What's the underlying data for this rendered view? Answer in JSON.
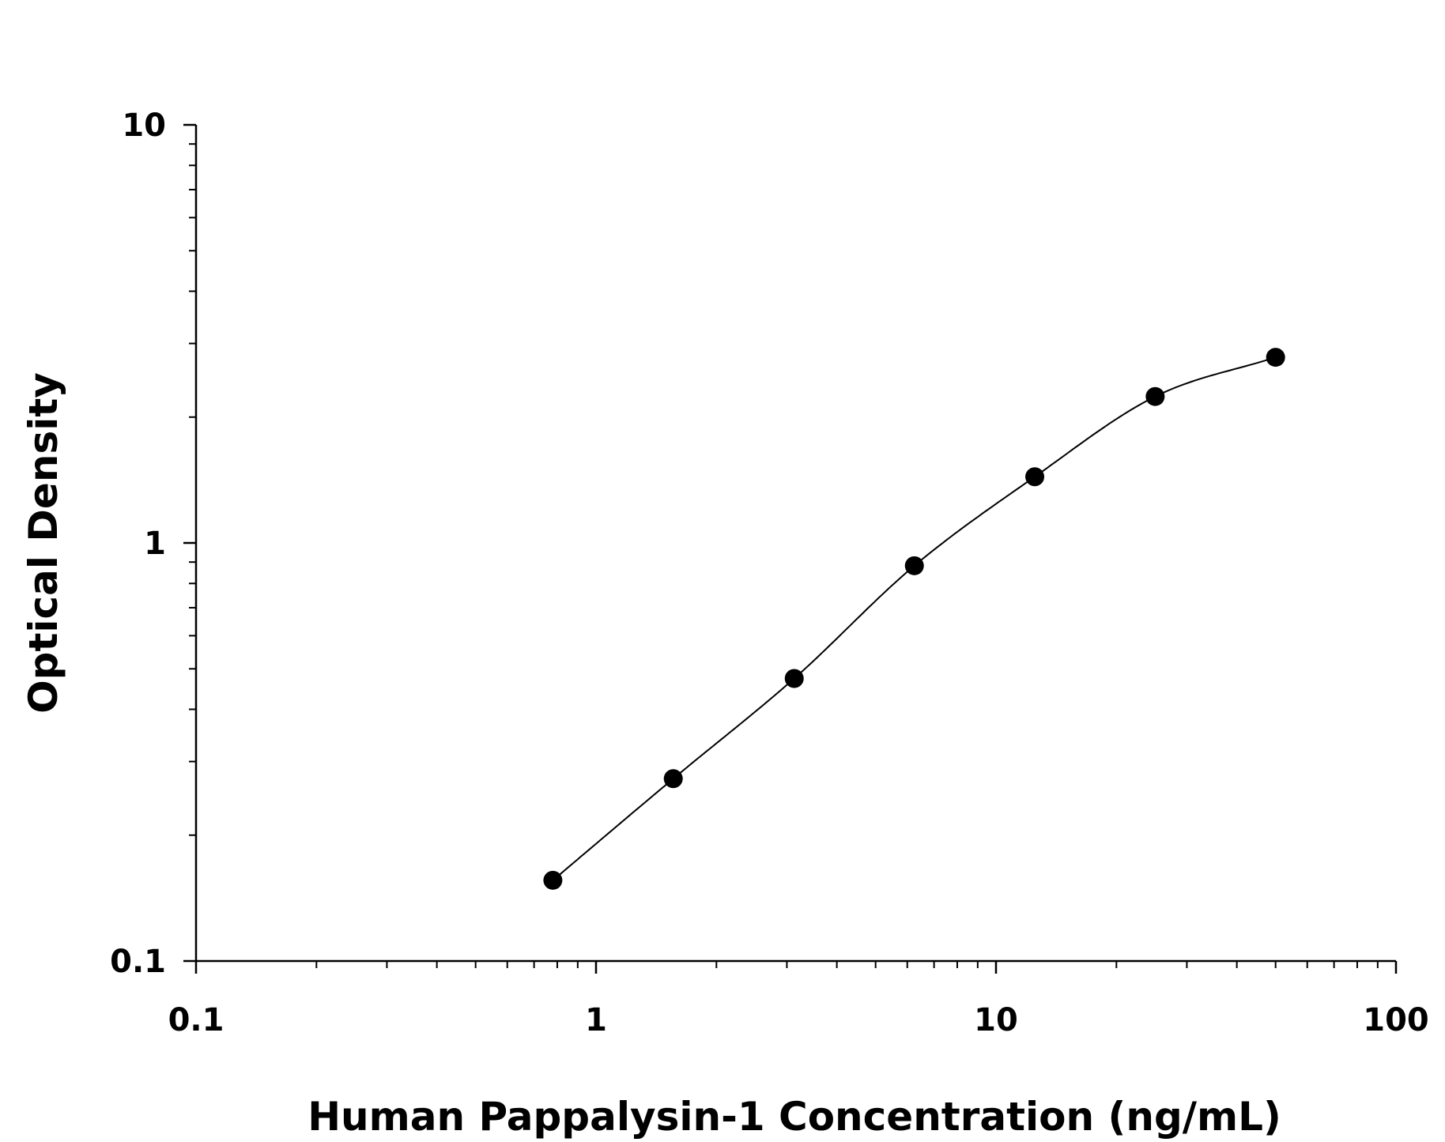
{
  "chart_data": {
    "type": "scatter",
    "xlabel": "Human Pappalysin-1 Concentration (ng/mL)",
    "ylabel": "Optical Density",
    "xscale": "log",
    "yscale": "log",
    "xlim": [
      0.1,
      100
    ],
    "ylim": [
      0.1,
      10
    ],
    "x_tick_labels": [
      "0.1",
      "1",
      "10",
      "100"
    ],
    "y_tick_labels": [
      "0.1",
      "1",
      "10"
    ],
    "grid": false,
    "series": [
      {
        "x": [
          0.78,
          1.56,
          3.13,
          6.25,
          12.5,
          25,
          50
        ],
        "y": [
          0.156,
          0.273,
          0.474,
          0.882,
          1.44,
          2.24,
          2.78
        ]
      }
    ],
    "fit_curve": {
      "type": "4PL",
      "x_range": [
        0.78,
        50
      ]
    }
  }
}
